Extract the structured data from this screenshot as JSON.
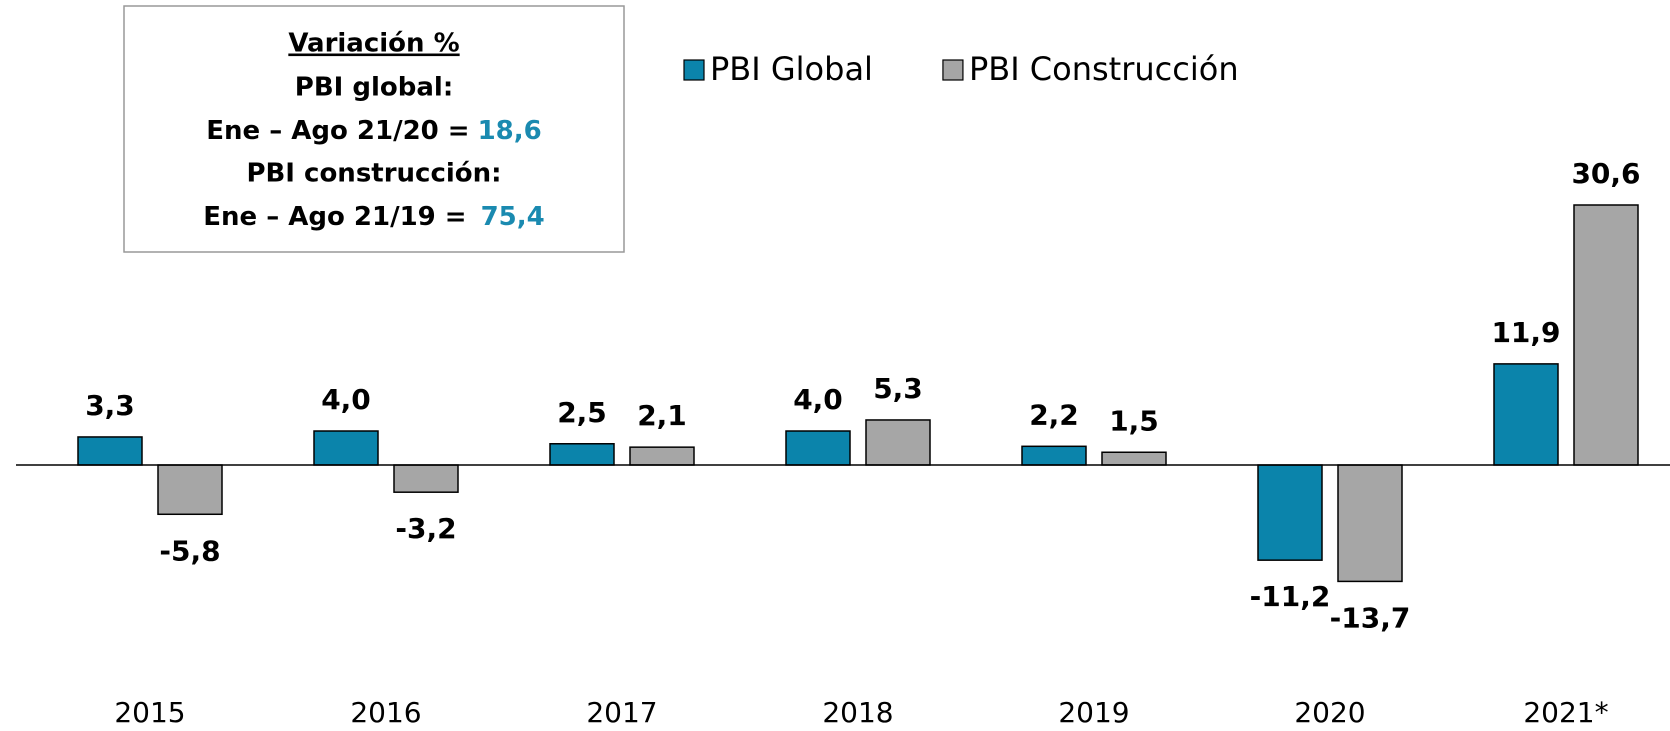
{
  "chart_data": {
    "type": "bar",
    "categories": [
      "2015",
      "2016",
      "2017",
      "2018",
      "2019",
      "2020",
      "2021*"
    ],
    "series": [
      {
        "name": "PBI Global",
        "color": "#0b84ab",
        "values": [
          3.3,
          4.0,
          2.5,
          4.0,
          2.2,
          -11.2,
          11.9
        ],
        "value_labels": [
          "3,3",
          "4,0",
          "2,5",
          "4,0",
          "2,2",
          "-11,2",
          "11,9"
        ]
      },
      {
        "name": "PBI Construcción",
        "color": "#a6a6a6",
        "values": [
          -5.8,
          -3.2,
          2.1,
          5.3,
          1.5,
          -13.7,
          30.6
        ],
        "value_labels": [
          "-5,8",
          "-3,2",
          "2,1",
          "5,3",
          "1,5",
          "-13,7",
          "30,6"
        ]
      }
    ],
    "legend": "top",
    "annotation": {
      "title": "Variación %",
      "global_label": "PBI global:",
      "global_period": "Ene – Ago 21/20 =",
      "global_value": "18,6",
      "construction_label": "PBI construcción:",
      "construction_period": "Ene – Ago 21/19 =",
      "construction_value": "75,4",
      "highlight_color": "#1a8ab0"
    }
  }
}
